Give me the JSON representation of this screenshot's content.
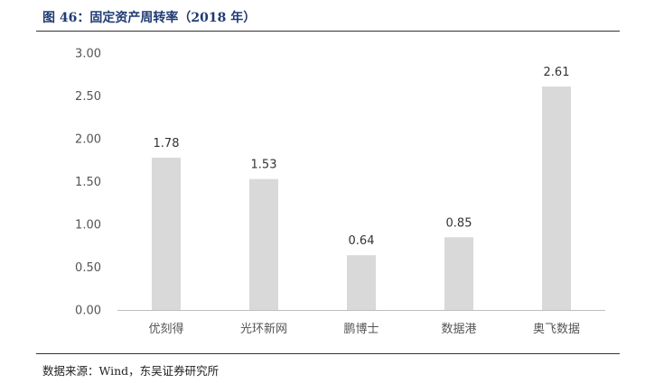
{
  "figure": {
    "title": "图 46：固定资产周转率（2018 年）",
    "source": "数据来源：Wind，东吴证券研究所"
  },
  "chart_data": {
    "type": "bar",
    "title": "固定资产周转率（2018 年）",
    "xlabel": "",
    "ylabel": "",
    "categories": [
      "优刻得",
      "光环新网",
      "鹏博士",
      "数据港",
      "奥飞数据"
    ],
    "values": [
      1.78,
      1.53,
      0.64,
      0.85,
      2.61
    ],
    "data_labels": [
      "1.78",
      "1.53",
      "0.64",
      "0.85",
      "2.61"
    ],
    "ylim": [
      0,
      3
    ],
    "yticks": [
      "0.00",
      "0.50",
      "1.00",
      "1.50",
      "2.00",
      "2.50",
      "3.00"
    ],
    "grid": false,
    "legend": "none",
    "bar_color": "#d9d9d9",
    "axis_color": "#bfbfbf"
  }
}
